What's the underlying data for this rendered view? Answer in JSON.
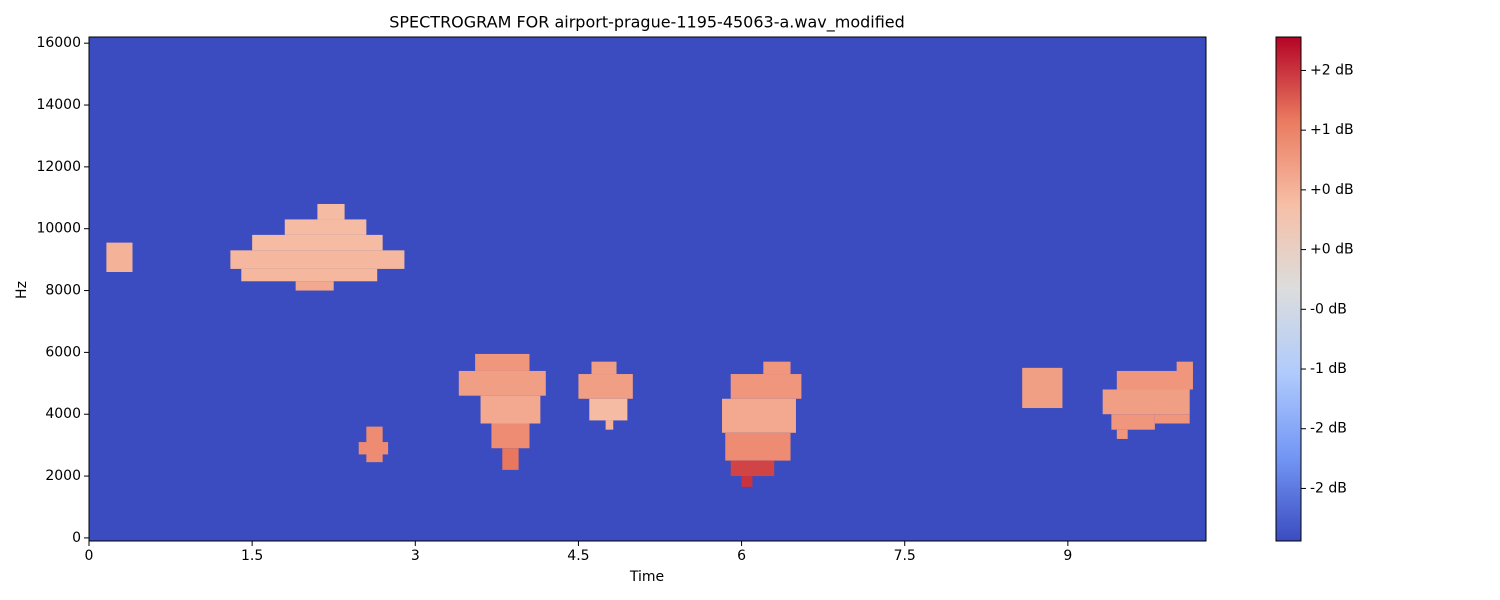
{
  "chart_data": {
    "type": "spectrogram",
    "title": "SPECTROGRAM FOR airport-prague-1195-45063-a.wav_modified",
    "x_label": "Time",
    "y_label": "Hz",
    "xlim": [
      0,
      10.27
    ],
    "xticks": [
      0,
      1.5,
      3,
      4.5,
      6,
      7.5,
      9
    ],
    "ylim": [
      -100,
      16200
    ],
    "yticks": [
      0,
      2000,
      4000,
      6000,
      8000,
      10000,
      12000,
      14000,
      16000
    ],
    "background_db": -2.44,
    "colorbar": {
      "lim": [
        -2.44,
        1.78
      ],
      "ticks": [
        {
          "value": 1.5,
          "label": "+2 dB"
        },
        {
          "value": 1.0,
          "label": "+1 dB"
        },
        {
          "value": 0.5,
          "label": "+0 dB"
        },
        {
          "value": 0.0,
          "label": "+0 dB"
        },
        {
          "value": -0.5,
          "label": "-0 dB"
        },
        {
          "value": -1.0,
          "label": "-1 dB"
        },
        {
          "value": -1.5,
          "label": "-2 dB"
        },
        {
          "value": -2.0,
          "label": "-2 dB"
        }
      ],
      "colors": [
        "#3b4cc0",
        "#7396f5",
        "#b0cbfc",
        "#dcdddd",
        "#f6bfa6",
        "#ea7b60",
        "#b40426"
      ]
    },
    "regions": [
      {
        "time": [
          0.16,
          0.4
        ],
        "freq": [
          8600,
          9550
        ],
        "db": 0.5
      },
      {
        "time": [
          2.1,
          2.35
        ],
        "freq": [
          10300,
          10800
        ],
        "db": 0.4
      },
      {
        "time": [
          1.8,
          2.55
        ],
        "freq": [
          9800,
          10300
        ],
        "db": 0.4
      },
      {
        "time": [
          1.5,
          2.7
        ],
        "freq": [
          9300,
          9800
        ],
        "db": 0.4
      },
      {
        "time": [
          1.3,
          2.9
        ],
        "freq": [
          8700,
          9300
        ],
        "db": 0.45
      },
      {
        "time": [
          1.4,
          2.65
        ],
        "freq": [
          8300,
          8700
        ],
        "db": 0.45
      },
      {
        "time": [
          1.9,
          2.25
        ],
        "freq": [
          8000,
          8300
        ],
        "db": 0.6
      },
      {
        "time": [
          2.48,
          2.75
        ],
        "freq": [
          2700,
          3100
        ],
        "db": 0.9
      },
      {
        "time": [
          2.55,
          2.7
        ],
        "freq": [
          2450,
          3600
        ],
        "db": 0.9
      },
      {
        "time": [
          3.55,
          4.05
        ],
        "freq": [
          5400,
          5950
        ],
        "db": 0.8
      },
      {
        "time": [
          3.4,
          4.2
        ],
        "freq": [
          4600,
          5400
        ],
        "db": 0.7
      },
      {
        "time": [
          3.6,
          4.15
        ],
        "freq": [
          3700,
          4600
        ],
        "db": 0.6
      },
      {
        "time": [
          3.7,
          4.05
        ],
        "freq": [
          2900,
          3700
        ],
        "db": 0.9
      },
      {
        "time": [
          3.8,
          3.95
        ],
        "freq": [
          2200,
          2900
        ],
        "db": 1.1
      },
      {
        "time": [
          4.62,
          4.85
        ],
        "freq": [
          5300,
          5700
        ],
        "db": 0.7
      },
      {
        "time": [
          4.5,
          5.0
        ],
        "freq": [
          4500,
          5300
        ],
        "db": 0.7
      },
      {
        "time": [
          4.6,
          4.95
        ],
        "freq": [
          3800,
          4500
        ],
        "db": 0.4
      },
      {
        "time": [
          4.75,
          4.82
        ],
        "freq": [
          3500,
          3800
        ],
        "db": 0.5
      },
      {
        "time": [
          6.2,
          6.45
        ],
        "freq": [
          5300,
          5700
        ],
        "db": 0.8
      },
      {
        "time": [
          5.9,
          6.55
        ],
        "freq": [
          4500,
          5300
        ],
        "db": 0.8
      },
      {
        "time": [
          5.82,
          6.5
        ],
        "freq": [
          3400,
          4500
        ],
        "db": 0.6
      },
      {
        "time": [
          5.85,
          6.45
        ],
        "freq": [
          2500,
          3400
        ],
        "db": 0.9
      },
      {
        "time": [
          5.9,
          6.3
        ],
        "freq": [
          2000,
          2500
        ],
        "db": 1.4
      },
      {
        "time": [
          6.0,
          6.1
        ],
        "freq": [
          1650,
          2000
        ],
        "db": 1.5
      },
      {
        "time": [
          8.58,
          8.95
        ],
        "freq": [
          4200,
          5500
        ],
        "db": 0.7
      },
      {
        "time": [
          10.0,
          10.15
        ],
        "freq": [
          5300,
          5700
        ],
        "db": 0.8
      },
      {
        "time": [
          9.45,
          10.15
        ],
        "freq": [
          4800,
          5400
        ],
        "db": 0.8
      },
      {
        "time": [
          9.32,
          10.12
        ],
        "freq": [
          4000,
          4800
        ],
        "db": 0.7
      },
      {
        "time": [
          9.4,
          9.8
        ],
        "freq": [
          3500,
          4000
        ],
        "db": 0.8
      },
      {
        "time": [
          9.8,
          10.12
        ],
        "freq": [
          3700,
          4000
        ],
        "db": 0.8
      },
      {
        "time": [
          9.45,
          9.55
        ],
        "freq": [
          3200,
          3500
        ],
        "db": 0.8
      }
    ]
  }
}
